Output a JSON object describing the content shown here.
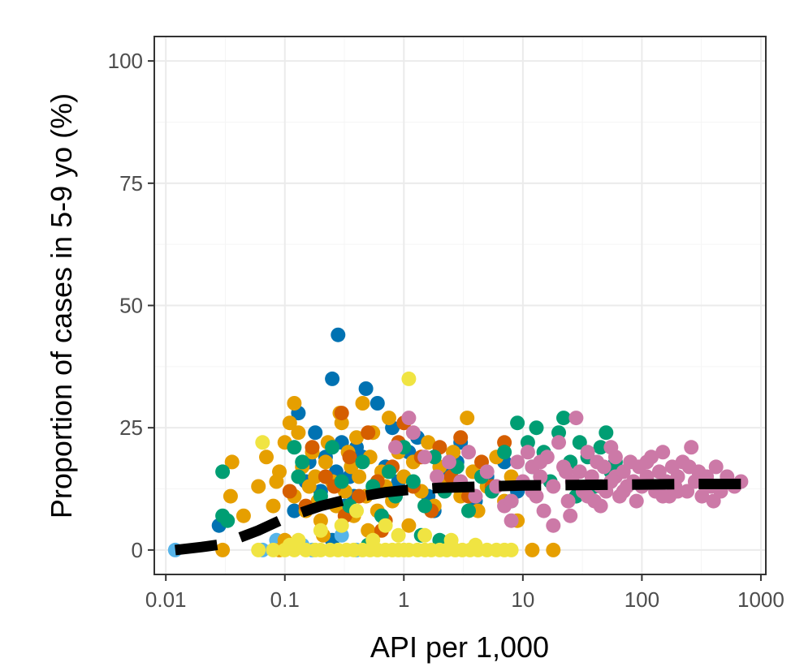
{
  "chart_data": {
    "type": "scatter",
    "title": "",
    "xlabel": "API per 1,000",
    "ylabel": "Proportion of cases in 5-9 yo (%)",
    "x_scale": "log10",
    "xlim": [
      0.008,
      1100
    ],
    "ylim": [
      -5,
      105
    ],
    "x_ticks": [
      0.01,
      0.1,
      1,
      10,
      100,
      1000
    ],
    "x_tick_labels": [
      "0.01",
      "0.1",
      "1",
      "10",
      "100",
      "1000"
    ],
    "y_ticks": [
      0,
      25,
      50,
      75,
      100
    ],
    "y_tick_labels": [
      "0",
      "25",
      "50",
      "75",
      "100"
    ],
    "grid": true,
    "legend": "none",
    "colors": {
      "blue": "#0072B2",
      "sky": "#56B4E9",
      "orange": "#E69F00",
      "vermillion": "#D55E00",
      "green": "#009E73",
      "yellow": "#F0E442",
      "pink": "#CC79A7",
      "trend": "#000000"
    },
    "series": [
      {
        "color": "#0072B2",
        "points": [
          [
            0.028,
            5
          ],
          [
            0.12,
            8
          ],
          [
            0.13,
            28
          ],
          [
            0.16,
            18
          ],
          [
            0.18,
            24
          ],
          [
            0.2,
            12
          ],
          [
            0.22,
            19
          ],
          [
            0.25,
            35
          ],
          [
            0.27,
            16
          ],
          [
            0.28,
            44
          ],
          [
            0.3,
            22
          ],
          [
            0.32,
            9
          ],
          [
            0.35,
            15
          ],
          [
            0.4,
            21
          ],
          [
            0.45,
            19
          ],
          [
            0.48,
            33
          ],
          [
            0.55,
            12
          ],
          [
            0.6,
            30
          ],
          [
            0.7,
            17
          ],
          [
            0.9,
            14
          ],
          [
            1.1,
            20
          ],
          [
            1.3,
            23
          ],
          [
            1.6,
            11
          ],
          [
            2.2,
            16
          ],
          [
            3,
            22
          ],
          [
            4,
            10
          ],
          [
            5,
            15
          ],
          [
            7,
            18
          ],
          [
            9,
            12
          ],
          [
            0.25,
            2
          ],
          [
            0.15,
            14
          ],
          [
            0.38,
            11
          ],
          [
            0.8,
            25
          ],
          [
            1.8,
            8
          ],
          [
            2.8,
            18
          ]
        ]
      },
      {
        "color": "#56B4E9",
        "points": [
          [
            0.012,
            0
          ],
          [
            0.065,
            0
          ],
          [
            0.085,
            2
          ],
          [
            0.17,
            0
          ],
          [
            0.4,
            0
          ],
          [
            0.3,
            3
          ],
          [
            0.14,
            1
          ]
        ]
      },
      {
        "color": "#E69F00",
        "points": [
          [
            0.03,
            0
          ],
          [
            0.036,
            18
          ],
          [
            0.035,
            11
          ],
          [
            0.045,
            7
          ],
          [
            0.06,
            13
          ],
          [
            0.07,
            19
          ],
          [
            0.08,
            9
          ],
          [
            0.09,
            16
          ],
          [
            0.1,
            22
          ],
          [
            0.11,
            26
          ],
          [
            0.12,
            30
          ],
          [
            0.13,
            24
          ],
          [
            0.14,
            17
          ],
          [
            0.15,
            8
          ],
          [
            0.16,
            13
          ],
          [
            0.17,
            20
          ],
          [
            0.18,
            15
          ],
          [
            0.19,
            10
          ],
          [
            0.2,
            6
          ],
          [
            0.21,
            3
          ],
          [
            0.22,
            18
          ],
          [
            0.23,
            22
          ],
          [
            0.25,
            14
          ],
          [
            0.27,
            9
          ],
          [
            0.29,
            28
          ],
          [
            0.3,
            26
          ],
          [
            0.32,
            12
          ],
          [
            0.34,
            20
          ],
          [
            0.36,
            17
          ],
          [
            0.38,
            7
          ],
          [
            0.4,
            23
          ],
          [
            0.42,
            15
          ],
          [
            0.45,
            30
          ],
          [
            0.48,
            11
          ],
          [
            0.52,
            19
          ],
          [
            0.55,
            24
          ],
          [
            0.6,
            8
          ],
          [
            0.65,
            16
          ],
          [
            0.7,
            13
          ],
          [
            0.75,
            27
          ],
          [
            0.8,
            10
          ],
          [
            0.9,
            20
          ],
          [
            1.0,
            15
          ],
          [
            1.1,
            5
          ],
          [
            1.2,
            18
          ],
          [
            1.4,
            12
          ],
          [
            1.6,
            22
          ],
          [
            1.8,
            9
          ],
          [
            2.0,
            17
          ],
          [
            2.3,
            14
          ],
          [
            2.6,
            20
          ],
          [
            3.0,
            11
          ],
          [
            3.4,
            27
          ],
          [
            3.8,
            16
          ],
          [
            4.2,
            8
          ],
          [
            5.0,
            13
          ],
          [
            6,
            19
          ],
          [
            7,
            10
          ],
          [
            8,
            15
          ],
          [
            9,
            6
          ],
          [
            12,
            0
          ],
          [
            18,
            0
          ],
          [
            0.1,
            2
          ],
          [
            0.09,
            0
          ],
          [
            0.5,
            4
          ],
          [
            0.085,
            14
          ],
          [
            0.12,
            11
          ]
        ]
      },
      {
        "color": "#D55E00",
        "points": [
          [
            0.11,
            12
          ],
          [
            0.15,
            9
          ],
          [
            0.17,
            21
          ],
          [
            0.22,
            15
          ],
          [
            0.3,
            28
          ],
          [
            0.35,
            19
          ],
          [
            0.42,
            11
          ],
          [
            0.5,
            24
          ],
          [
            0.6,
            14
          ],
          [
            0.7,
            6
          ],
          [
            0.8,
            17
          ],
          [
            0.9,
            22
          ],
          [
            1.0,
            26
          ],
          [
            1.2,
            13
          ],
          [
            1.4,
            19
          ],
          [
            1.7,
            8
          ],
          [
            2.0,
            21
          ],
          [
            2.5,
            15
          ],
          [
            3.0,
            23
          ],
          [
            3.5,
            11
          ],
          [
            4.5,
            18
          ],
          [
            5.5,
            13
          ],
          [
            7,
            22
          ],
          [
            0.65,
            4
          ],
          [
            0.26,
            13
          ],
          [
            0.32,
            7
          ]
        ]
      },
      {
        "color": "#009E73",
        "points": [
          [
            0.03,
            16
          ],
          [
            0.03,
            7
          ],
          [
            0.033,
            6
          ],
          [
            0.12,
            21
          ],
          [
            0.13,
            15
          ],
          [
            0.14,
            18
          ],
          [
            0.2,
            11
          ],
          [
            0.25,
            21
          ],
          [
            0.3,
            14
          ],
          [
            0.35,
            9
          ],
          [
            0.45,
            18
          ],
          [
            0.55,
            13
          ],
          [
            0.65,
            7
          ],
          [
            0.75,
            16
          ],
          [
            0.85,
            11
          ],
          [
            1.0,
            21
          ],
          [
            1.2,
            14
          ],
          [
            1.5,
            9
          ],
          [
            1.8,
            19
          ],
          [
            2.2,
            12
          ],
          [
            2.8,
            17
          ],
          [
            3.5,
            8
          ],
          [
            4.5,
            15
          ],
          [
            5.5,
            12
          ],
          [
            7,
            20
          ],
          [
            8,
            10
          ],
          [
            9,
            26
          ],
          [
            11,
            22
          ],
          [
            12,
            17
          ],
          [
            13,
            25
          ],
          [
            15,
            20
          ],
          [
            17,
            14
          ],
          [
            20,
            24
          ],
          [
            22,
            27
          ],
          [
            25,
            18
          ],
          [
            28,
            11
          ],
          [
            30,
            22
          ],
          [
            35,
            19
          ],
          [
            40,
            13
          ],
          [
            45,
            21
          ],
          [
            50,
            24
          ],
          [
            55,
            16
          ],
          [
            60,
            18
          ],
          [
            2.0,
            2
          ],
          [
            1.4,
            3
          ],
          [
            0.5,
            1
          ]
        ]
      },
      {
        "color": "#F0E442",
        "points": [
          [
            0.06,
            0
          ],
          [
            0.08,
            0
          ],
          [
            0.1,
            0
          ],
          [
            0.12,
            0
          ],
          [
            0.15,
            0
          ],
          [
            0.18,
            0
          ],
          [
            0.2,
            0
          ],
          [
            0.24,
            0
          ],
          [
            0.28,
            0
          ],
          [
            0.33,
            0
          ],
          [
            0.38,
            0
          ],
          [
            0.45,
            0
          ],
          [
            0.52,
            0
          ],
          [
            0.6,
            0
          ],
          [
            0.7,
            0
          ],
          [
            0.8,
            0
          ],
          [
            0.9,
            0
          ],
          [
            1.0,
            0
          ],
          [
            1.1,
            0
          ],
          [
            1.3,
            0
          ],
          [
            1.5,
            0
          ],
          [
            1.7,
            0
          ],
          [
            2.0,
            0
          ],
          [
            2.3,
            0
          ],
          [
            2.7,
            0
          ],
          [
            3.1,
            0
          ],
          [
            3.6,
            0
          ],
          [
            4.2,
            0
          ],
          [
            5.0,
            0
          ],
          [
            6,
            0
          ],
          [
            7,
            0
          ],
          [
            8,
            0
          ],
          [
            0.065,
            22
          ],
          [
            1.1,
            35
          ],
          [
            0.7,
            5
          ],
          [
            1.5,
            3
          ],
          [
            0.3,
            5
          ],
          [
            0.2,
            4
          ],
          [
            0.13,
            2
          ],
          [
            0.4,
            8
          ],
          [
            0.9,
            3
          ],
          [
            0.55,
            2
          ],
          [
            0.11,
            1
          ],
          [
            2.5,
            2
          ],
          [
            4,
            1
          ]
        ]
      },
      {
        "color": "#CC79A7",
        "points": [
          [
            0.85,
            21
          ],
          [
            1.1,
            27
          ],
          [
            1.2,
            24
          ],
          [
            1.5,
            19
          ],
          [
            1.9,
            15
          ],
          [
            2.4,
            18
          ],
          [
            3,
            14
          ],
          [
            3.5,
            20
          ],
          [
            4,
            11
          ],
          [
            5,
            16
          ],
          [
            6,
            13
          ],
          [
            7,
            9
          ],
          [
            8,
            6
          ],
          [
            9,
            18
          ],
          [
            10,
            14
          ],
          [
            11,
            20
          ],
          [
            12,
            17
          ],
          [
            13,
            11
          ],
          [
            14,
            15
          ],
          [
            15,
            8
          ],
          [
            16,
            19
          ],
          [
            18,
            13
          ],
          [
            20,
            22
          ],
          [
            22,
            17
          ],
          [
            24,
            10
          ],
          [
            26,
            14
          ],
          [
            28,
            27
          ],
          [
            30,
            16
          ],
          [
            32,
            12
          ],
          [
            35,
            20
          ],
          [
            38,
            15
          ],
          [
            40,
            10
          ],
          [
            42,
            18
          ],
          [
            45,
            13
          ],
          [
            48,
            17
          ],
          [
            50,
            12
          ],
          [
            55,
            21
          ],
          [
            60,
            15
          ],
          [
            65,
            11
          ],
          [
            70,
            16
          ],
          [
            75,
            13
          ],
          [
            80,
            18
          ],
          [
            85,
            14
          ],
          [
            90,
            10
          ],
          [
            95,
            17
          ],
          [
            100,
            13
          ],
          [
            110,
            15
          ],
          [
            120,
            19
          ],
          [
            130,
            12
          ],
          [
            140,
            16
          ],
          [
            150,
            20
          ],
          [
            160,
            14
          ],
          [
            170,
            11
          ],
          [
            180,
            17
          ],
          [
            190,
            13
          ],
          [
            200,
            15
          ],
          [
            220,
            18
          ],
          [
            240,
            12
          ],
          [
            260,
            21
          ],
          [
            280,
            14
          ],
          [
            300,
            16
          ],
          [
            320,
            11
          ],
          [
            350,
            15
          ],
          [
            380,
            13
          ],
          [
            420,
            17
          ],
          [
            460,
            12
          ],
          [
            520,
            15
          ],
          [
            600,
            13
          ],
          [
            680,
            14
          ],
          [
            25,
            7
          ],
          [
            18,
            5
          ],
          [
            8,
            10
          ],
          [
            12,
            12
          ],
          [
            45,
            9
          ],
          [
            70,
            12
          ],
          [
            110,
            18
          ],
          [
            150,
            11
          ],
          [
            200,
            12
          ],
          [
            250,
            17
          ],
          [
            400,
            10
          ],
          [
            55,
            14
          ],
          [
            35,
            11
          ],
          [
            23,
            16
          ],
          [
            14,
            18
          ],
          [
            60,
            19
          ]
        ]
      }
    ],
    "trend_line": {
      "style": "dashed",
      "color": "#000000",
      "points": [
        [
          0.012,
          0
        ],
        [
          0.02,
          0.6
        ],
        [
          0.03,
          1.2
        ],
        [
          0.06,
          4
        ],
        [
          0.1,
          6.5
        ],
        [
          0.2,
          9
        ],
        [
          0.4,
          10.8
        ],
        [
          0.7,
          11.8
        ],
        [
          1,
          12.2
        ],
        [
          2,
          12.7
        ],
        [
          5,
          13
        ],
        [
          10,
          13.2
        ],
        [
          30,
          13.3
        ],
        [
          100,
          13.4
        ],
        [
          300,
          13.5
        ],
        [
          700,
          13.5
        ]
      ]
    }
  }
}
